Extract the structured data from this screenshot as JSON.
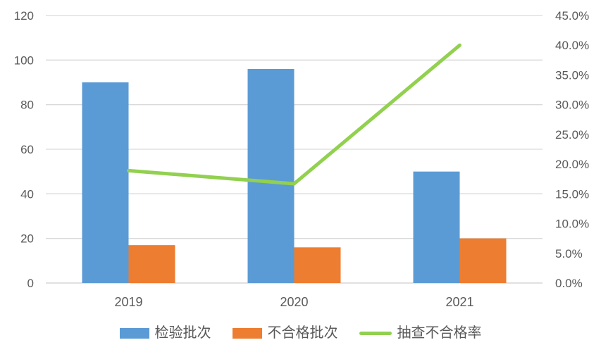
{
  "chart_data": {
    "type": "combo",
    "title": "",
    "categories": [
      "2019",
      "2020",
      "2021"
    ],
    "series": [
      {
        "name": "检验批次",
        "type": "bar",
        "axis": "left",
        "color": "#5B9BD5",
        "values": [
          90,
          96,
          50
        ]
      },
      {
        "name": "不合格批次",
        "type": "bar",
        "axis": "left",
        "color": "#ED7D31",
        "values": [
          17,
          16,
          20
        ]
      },
      {
        "name": "抽查不合格率",
        "type": "line",
        "axis": "right",
        "color": "#92D050",
        "values": [
          18.9,
          16.7,
          40.0
        ]
      }
    ],
    "left_axis": {
      "min": 0,
      "max": 120,
      "step": 20,
      "tick_labels": [
        "0",
        "20",
        "40",
        "60",
        "80",
        "100",
        "120"
      ]
    },
    "right_axis": {
      "min": 0,
      "max": 45,
      "step": 5,
      "tick_labels": [
        "0.0%",
        "5.0%",
        "10.0%",
        "15.0%",
        "20.0%",
        "25.0%",
        "30.0%",
        "35.0%",
        "40.0%",
        "45.0%"
      ]
    },
    "grid": true,
    "legend_position": "bottom"
  },
  "colors": {
    "grid": "#D9D9D9",
    "axis_line": "#D0CECE",
    "tick_text": "#595959",
    "background": "#FFFFFF"
  }
}
